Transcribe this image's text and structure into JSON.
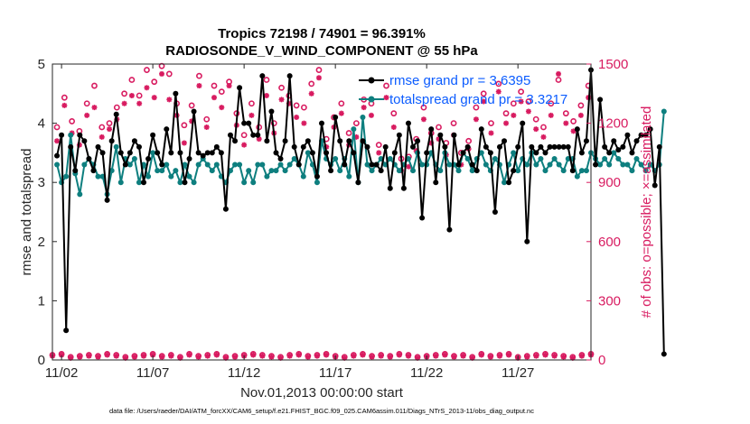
{
  "chart_data": {
    "type": "line",
    "title": "Tropics 72198 / 74901 = 96.391%",
    "subtitle": "RADIOSONDE_V_WIND_COMPONENT @ 55 hPa",
    "xlabel": "Nov.01,2013 00:00:00 start",
    "ylabel": "rmse and totalspread",
    "ylabel_right": "# of obs: o=possible; ×=assimilated",
    "footnote": "data file: /Users/raeder/DAI/ATM_forcXX/CAM6_setup/f.e21.FHIST_BGC.f09_025.CAM6assim.011/Diags_NTrS_2013-11/obs_diag_output.nc",
    "x_ticks": [
      {
        "day": 2,
        "label": "11/02"
      },
      {
        "day": 7,
        "label": "11/07"
      },
      {
        "day": 12,
        "label": "11/12"
      },
      {
        "day": 17,
        "label": "11/17"
      },
      {
        "day": 22,
        "label": "11/22"
      },
      {
        "day": 27,
        "label": "11/27"
      }
    ],
    "xlim": [
      1.5,
      31.0
    ],
    "ylim": [
      0,
      5
    ],
    "y_ticks": [
      "0",
      "1",
      "2",
      "3",
      "4",
      "5"
    ],
    "ylim_right": [
      0,
      1500
    ],
    "y_ticks_right": [
      "0",
      "300",
      "600",
      "900",
      "1200",
      "1500"
    ],
    "time_start_day": 1.75,
    "time_step_days": 0.25,
    "colors": {
      "rmse": "#000000",
      "spread": "#0e7f7f",
      "obs": "#d81b60",
      "legend_text": "#0b5cff"
    },
    "series": [
      {
        "name": "rmse grand pr = 3.6395",
        "values": [
          3.45,
          3.8,
          0.5,
          3.6,
          3.2,
          3.8,
          3.7,
          3.4,
          3.2,
          3.6,
          3.5,
          2.7,
          3.7,
          4.15,
          3.5,
          3.3,
          3.5,
          3.7,
          3.6,
          3.0,
          3.4,
          3.8,
          3.5,
          3.3,
          3.9,
          3.5,
          4.5,
          3.5,
          3.0,
          3.4,
          4.2,
          3.5,
          3.45,
          3.5,
          3.5,
          3.6,
          3.5,
          2.55,
          3.8,
          3.7,
          4.6,
          4.0,
          4.0,
          3.8,
          3.8,
          4.8,
          3.7,
          4.2,
          3.5,
          3.4,
          3.7,
          4.8,
          3.6,
          3.3,
          3.6,
          3.7,
          3.5,
          3.1,
          4.0,
          3.5,
          3.2,
          4.1,
          3.7,
          3.3,
          3.7,
          3.5,
          3.0,
          3.7,
          3.6,
          3.3,
          3.3,
          3.2,
          3.6,
          2.9,
          3.5,
          3.8,
          2.9,
          4.0,
          3.6,
          3.7,
          2.4,
          3.5,
          3.9,
          3.0,
          3.8,
          3.6,
          2.2,
          3.8,
          3.3,
          3.5,
          3.6,
          3.3,
          3.2,
          3.9,
          3.6,
          3.5,
          2.5,
          3.6,
          3.7,
          3.0,
          3.2,
          3.6,
          4.0,
          2.0,
          3.6,
          3.5,
          3.6,
          3.5,
          3.6,
          3.6,
          3.6,
          3.6,
          3.6,
          3.2,
          3.9,
          3.5,
          3.7,
          4.9,
          3.3,
          4.4,
          3.6,
          3.5,
          3.7,
          3.55,
          3.6,
          3.8,
          3.5,
          3.7,
          3.8,
          3.8,
          3.9,
          2.95,
          3.6,
          0.1
        ],
        "color": "#000000"
      },
      {
        "name": "totalspread grand pr = 3.3217",
        "values": [
          3.3,
          3.0,
          3.1,
          3.8,
          3.15,
          2.8,
          3.3,
          3.4,
          3.3,
          3.1,
          3.1,
          2.8,
          3.2,
          3.6,
          3.0,
          3.4,
          3.3,
          3.4,
          3.0,
          3.3,
          3.1,
          3.5,
          3.2,
          3.2,
          3.3,
          3.1,
          3.2,
          3.0,
          3.3,
          3.1,
          3.0,
          3.3,
          3.4,
          3.3,
          3.2,
          3.3,
          3.1,
          3.0,
          3.2,
          3.3,
          3.3,
          3.0,
          3.2,
          3.0,
          3.3,
          3.3,
          3.1,
          3.2,
          3.2,
          3.3,
          3.2,
          3.3,
          3.4,
          3.3,
          3.1,
          3.5,
          3.3,
          3.0,
          3.7,
          3.4,
          3.3,
          3.4,
          3.2,
          3.4,
          3.1,
          3.9,
          3.0,
          4.1,
          3.3,
          3.2,
          3.3,
          3.4,
          3.3,
          3.4,
          3.3,
          3.2,
          3.3,
          3.4,
          3.2,
          3.5,
          3.3,
          3.3,
          3.5,
          3.3,
          3.2,
          3.5,
          3.3,
          3.3,
          3.2,
          3.5,
          3.4,
          3.2,
          3.4,
          3.5,
          3.3,
          3.2,
          3.4,
          3.3,
          3.0,
          3.3,
          3.5,
          3.2,
          3.4,
          3.3,
          3.5,
          3.3,
          3.4,
          3.2,
          3.3,
          3.4,
          3.3,
          3.2,
          3.4,
          3.4,
          3.1,
          3.2,
          3.2,
          3.5,
          3.4,
          3.3,
          3.4,
          3.3,
          3.5,
          3.4,
          3.3,
          3.3,
          3.2,
          3.4,
          3.3,
          3.2,
          3.3,
          3.2,
          3.3,
          4.2
        ],
        "color": "#0e7f7f"
      }
    ],
    "obs_high": {
      "name": "possible / assimilated (high counts)",
      "possible": [
        1180,
        1330,
        1210,
        1160,
        1300,
        1390,
        1180,
        1200,
        1280,
        1350,
        1420,
        1340,
        1470,
        1410,
        1490,
        1450,
        1300,
        1190,
        1290,
        1440,
        1220,
        1390,
        1360,
        1410,
        1250,
        1140,
        1300,
        1180,
        1420,
        1200,
        1380,
        1340,
        1290,
        1280,
        1400,
        1470,
        1120,
        1230,
        1300,
        1150,
        1200,
        1320,
        1300,
        1090,
        1390,
        1250,
        1020,
        1030,
        1120,
        1280,
        1150,
        1180,
        1100,
        1200,
        1050,
        1110,
        1280,
        1350,
        1200,
        1400,
        1250,
        1300,
        1360,
        1310,
        1220,
        1180,
        1300,
        1420,
        1250,
        1210,
        1290,
        1390
      ],
      "assimilated": [
        1110,
        1290,
        1150,
        1090,
        1240,
        1280,
        1130,
        1170,
        1220,
        1300,
        1340,
        1300,
        1380,
        1330,
        1450,
        1320,
        1240,
        1100,
        1210,
        1390,
        1180,
        1330,
        1280,
        1390,
        1190,
        1090,
        1240,
        1120,
        1340,
        1150,
        1320,
        1300,
        1230,
        1200,
        1350,
        1430,
        1080,
        1180,
        1250,
        1090,
        1130,
        1280,
        1240,
        1050,
        1330,
        1180,
        960,
        980,
        1060,
        1220,
        1100,
        1120,
        1040,
        1140,
        990,
        1070,
        1220,
        1310,
        1150,
        1360,
        1200,
        1240,
        1310,
        1260,
        1170,
        1130,
        1240,
        1450,
        1200,
        1160,
        1240,
        1330
      ]
    },
    "obs_low": {
      "name": "possible / assimilated (low counts)",
      "possible": [
        25,
        30,
        15,
        20,
        25,
        20,
        30,
        25,
        15,
        20,
        25,
        30,
        20,
        25,
        15,
        30,
        20,
        25,
        30,
        15,
        20,
        25,
        30,
        25,
        20,
        15,
        25,
        30,
        20,
        25,
        30,
        20,
        15,
        25,
        30,
        20,
        25,
        20,
        30,
        25,
        15,
        20,
        25,
        30,
        20,
        25,
        15,
        30,
        20,
        25,
        30,
        15,
        20,
        25,
        30,
        25,
        20,
        15,
        25,
        30
      ],
      "assimilated": [
        20,
        25,
        10,
        15,
        20,
        15,
        25,
        20,
        10,
        15,
        20,
        25,
        15,
        20,
        10,
        25,
        15,
        20,
        25,
        10,
        15,
        20,
        25,
        20,
        15,
        10,
        20,
        25,
        15,
        20,
        25,
        15,
        10,
        20,
        25,
        15,
        20,
        15,
        25,
        20,
        10,
        15,
        20,
        25,
        15,
        20,
        10,
        25,
        15,
        20,
        25,
        10,
        15,
        20,
        25,
        20,
        15,
        10,
        20,
        25
      ]
    }
  }
}
